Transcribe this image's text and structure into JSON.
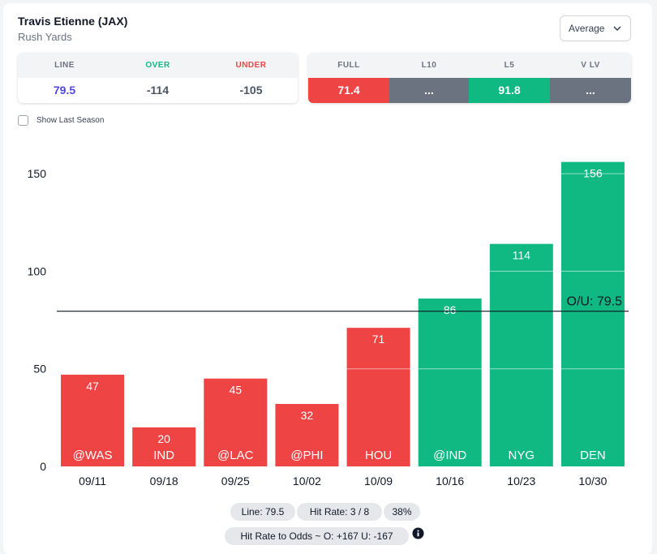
{
  "player": {
    "name": "Travis Etienne (JAX)",
    "stat": "Rush Yards"
  },
  "dropdown": {
    "value": "Average"
  },
  "odds": {
    "line_label": "LINE",
    "over_label": "OVER",
    "under_label": "UNDER",
    "line": "79.5",
    "over": "-114",
    "under": "-105"
  },
  "averages": {
    "full_label": "FULL",
    "l10_label": "L10",
    "l5_label": "L5",
    "vs_label": "V LV",
    "full": "71.4",
    "l10": "...",
    "l5": "91.8",
    "vs": "..."
  },
  "options": {
    "show_last_season": "Show Last Season"
  },
  "colors": {
    "over": "#10b981",
    "under": "#ef4444",
    "neutral": "#6b7280",
    "line_value": "#4f46e5"
  },
  "chart_data": {
    "type": "bar",
    "categories": [
      "09/11",
      "09/18",
      "09/25",
      "10/02",
      "10/09",
      "10/16",
      "10/23",
      "10/30"
    ],
    "opponents": [
      "@WAS",
      "IND",
      "@LAC",
      "@PHI",
      "HOU",
      "@IND",
      "NYG",
      "DEN"
    ],
    "values": [
      47,
      20,
      45,
      32,
      71,
      86,
      114,
      156
    ],
    "hit": [
      false,
      false,
      false,
      false,
      false,
      true,
      true,
      true
    ],
    "ylim": [
      0,
      160
    ],
    "yticks": [
      0,
      50,
      100,
      150
    ],
    "line": {
      "value": 79.5,
      "label": "O/U: 79.5"
    },
    "grid": false
  },
  "summary": {
    "line": "Line: 79.5",
    "hit_rate": "Hit Rate: 3 / 8",
    "pct": "38%",
    "odds": "Hit Rate to Odds ~ O: +167 U: -167"
  }
}
